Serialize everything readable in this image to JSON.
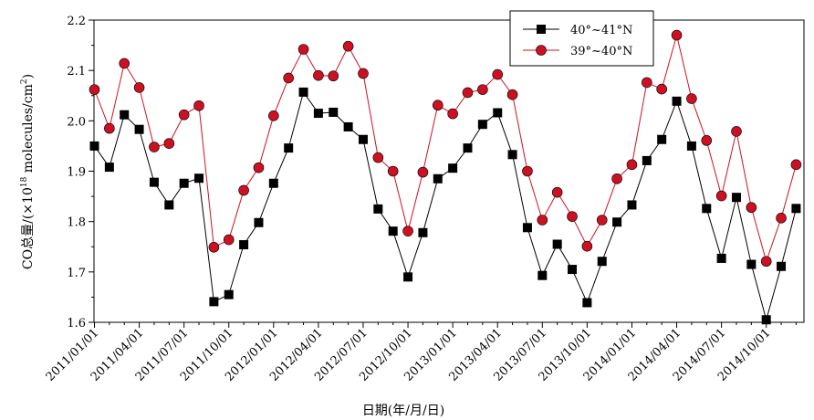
{
  "chart_data": {
    "type": "line",
    "ylabel_prefix": "CO总量/(×10",
    "ylabel_exponent": "18",
    "ylabel_mid": " molecules/cm",
    "ylabel_sup2": "2",
    "ylabel_suffix": ")",
    "xlabel": "日期(年/月/日)",
    "ylim": [
      1.6,
      2.2
    ],
    "yticks": [
      "1.6",
      "1.7",
      "1.8",
      "1.9",
      "2.0",
      "2.1",
      "2.2"
    ],
    "xtick_labels": [
      "2011/01/01",
      "2011/04/01",
      "2011/07/01",
      "2011/10/01",
      "2012/01/01",
      "2012/04/01",
      "2012/07/01",
      "2012/10/01",
      "2013/01/01",
      "2013/04/01",
      "2013/07/01",
      "2013/10/01",
      "2014/01/01",
      "2014/04/01",
      "2014/07/01",
      "2014/10/01"
    ],
    "legend_position": "top-right",
    "series": [
      {
        "name": "40°~41°N",
        "color": "#000000",
        "marker": "square",
        "values": [
          1.95,
          1.908,
          2.012,
          1.983,
          1.878,
          1.833,
          1.876,
          1.886,
          1.641,
          1.655,
          1.754,
          1.798,
          1.876,
          1.946,
          2.057,
          2.015,
          2.017,
          1.988,
          1.963,
          1.825,
          1.781,
          1.69,
          1.778,
          1.885,
          1.906,
          1.946,
          1.993,
          2.016,
          1.933,
          1.788,
          1.693,
          1.755,
          1.705,
          1.639,
          1.721,
          1.799,
          1.833,
          1.921,
          1.963,
          2.039,
          1.95,
          1.826,
          1.727,
          1.848,
          1.715,
          1.605,
          1.711,
          1.826
        ]
      },
      {
        "name": "39°~40°N",
        "color": "#cc1122",
        "marker": "circle",
        "values": [
          2.062,
          1.985,
          2.114,
          2.066,
          1.948,
          1.955,
          2.012,
          2.03,
          1.749,
          1.764,
          1.862,
          1.907,
          2.01,
          2.085,
          2.142,
          2.09,
          2.089,
          2.148,
          2.094,
          1.927,
          1.9,
          1.781,
          1.898,
          2.031,
          2.014,
          2.056,
          2.062,
          2.092,
          2.052,
          1.9,
          1.803,
          1.858,
          1.81,
          1.751,
          1.803,
          1.885,
          1.913,
          2.076,
          2.063,
          2.17,
          2.044,
          1.961,
          1.851,
          1.979,
          1.828,
          1.721,
          1.807,
          1.913
        ]
      }
    ]
  }
}
